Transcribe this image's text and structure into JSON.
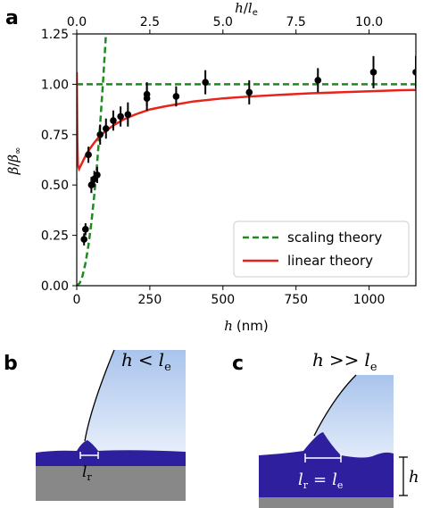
{
  "panels": {
    "a": "a",
    "b": "b",
    "c": "c"
  },
  "chart_data": {
    "type": "scatter",
    "xlabel": "h (nm)",
    "ylabel": "β/β∞",
    "top_xlabel": "h/le",
    "xlim": [
      0,
      1160
    ],
    "ylim": [
      0,
      1.25
    ],
    "top_xlim": [
      0,
      11.6
    ],
    "xticks": [
      0,
      250,
      500,
      750,
      1000
    ],
    "xtick_labels": [
      "0",
      "250",
      "500",
      "750",
      "1000"
    ],
    "yticks": [
      0,
      0.25,
      0.5,
      0.75,
      1.0,
      1.25
    ],
    "ytick_labels": [
      "0.00",
      "0.25",
      "0.50",
      "0.75",
      "1.00",
      "1.25"
    ],
    "top_xticks": [
      0,
      2.5,
      5,
      7.5,
      10
    ],
    "top_xtick_labels": [
      "0.0",
      "2.5",
      "5.0",
      "7.5",
      "10.0"
    ],
    "legend_position": "lower-right",
    "series": [
      {
        "name": "scaling theory",
        "kind": "line",
        "style": "dashed",
        "color": "#1f8a1f",
        "x": [
          0,
          10,
          20,
          30,
          40,
          50,
          60,
          70,
          80,
          90,
          100,
          110,
          1160
        ],
        "y": [
          0,
          0.0125,
          0.05,
          0.1125,
          0.2,
          0.3125,
          0.45,
          0.6125,
          0.8,
          1.0125,
          1.25,
          1.5125,
          1.0
        ]
      },
      {
        "name": "linear theory",
        "kind": "line",
        "style": "solid",
        "color": "#e8231c",
        "x": [
          0,
          2,
          4,
          8,
          15,
          25,
          40,
          60,
          80,
          100,
          130,
          160,
          200,
          250,
          300,
          400,
          500,
          600,
          700,
          800,
          900,
          1000,
          1100,
          1160
        ],
        "y": [
          1.06,
          0.72,
          0.6,
          0.58,
          0.6,
          0.63,
          0.67,
          0.71,
          0.745,
          0.77,
          0.8,
          0.825,
          0.85,
          0.875,
          0.89,
          0.915,
          0.93,
          0.94,
          0.948,
          0.955,
          0.96,
          0.965,
          0.97,
          0.972
        ]
      },
      {
        "name": "data",
        "kind": "points",
        "color": "#000000",
        "x": [
          25,
          30,
          40,
          50,
          60,
          70,
          80,
          100,
          125,
          150,
          175,
          240,
          240,
          340,
          440,
          590,
          825,
          1015,
          1160
        ],
        "y": [
          0.23,
          0.28,
          0.65,
          0.5,
          0.53,
          0.55,
          0.75,
          0.78,
          0.82,
          0.84,
          0.85,
          0.93,
          0.95,
          0.94,
          1.01,
          0.96,
          1.02,
          1.06,
          1.06
        ],
        "yerr": [
          0.03,
          0.03,
          0.04,
          0.04,
          0.04,
          0.04,
          0.05,
          0.05,
          0.05,
          0.05,
          0.06,
          0.06,
          0.06,
          0.05,
          0.06,
          0.06,
          0.06,
          0.08,
          0.08
        ]
      }
    ]
  },
  "legend": {
    "scaling": "scaling theory",
    "linear": "linear theory"
  },
  "schematics": {
    "b": {
      "relation_left": "h",
      "relation_op": "<",
      "relation_right": "l",
      "relation_sub": "e",
      "width_label": "l",
      "width_sub": "r"
    },
    "c": {
      "relation_left": "h",
      "relation_op": ">>",
      "relation_right": "l",
      "relation_sub": "e",
      "width_label": "l",
      "width_sub": "r",
      "width_eq": "=",
      "width_rhs": "l",
      "width_rhs_sub": "e",
      "height_label": "h"
    }
  },
  "colors": {
    "film": "#2e1f9e",
    "substrate": "#888888",
    "liquid_top": "#a9c4ec",
    "liquid_bottom": "#e6eefb"
  }
}
